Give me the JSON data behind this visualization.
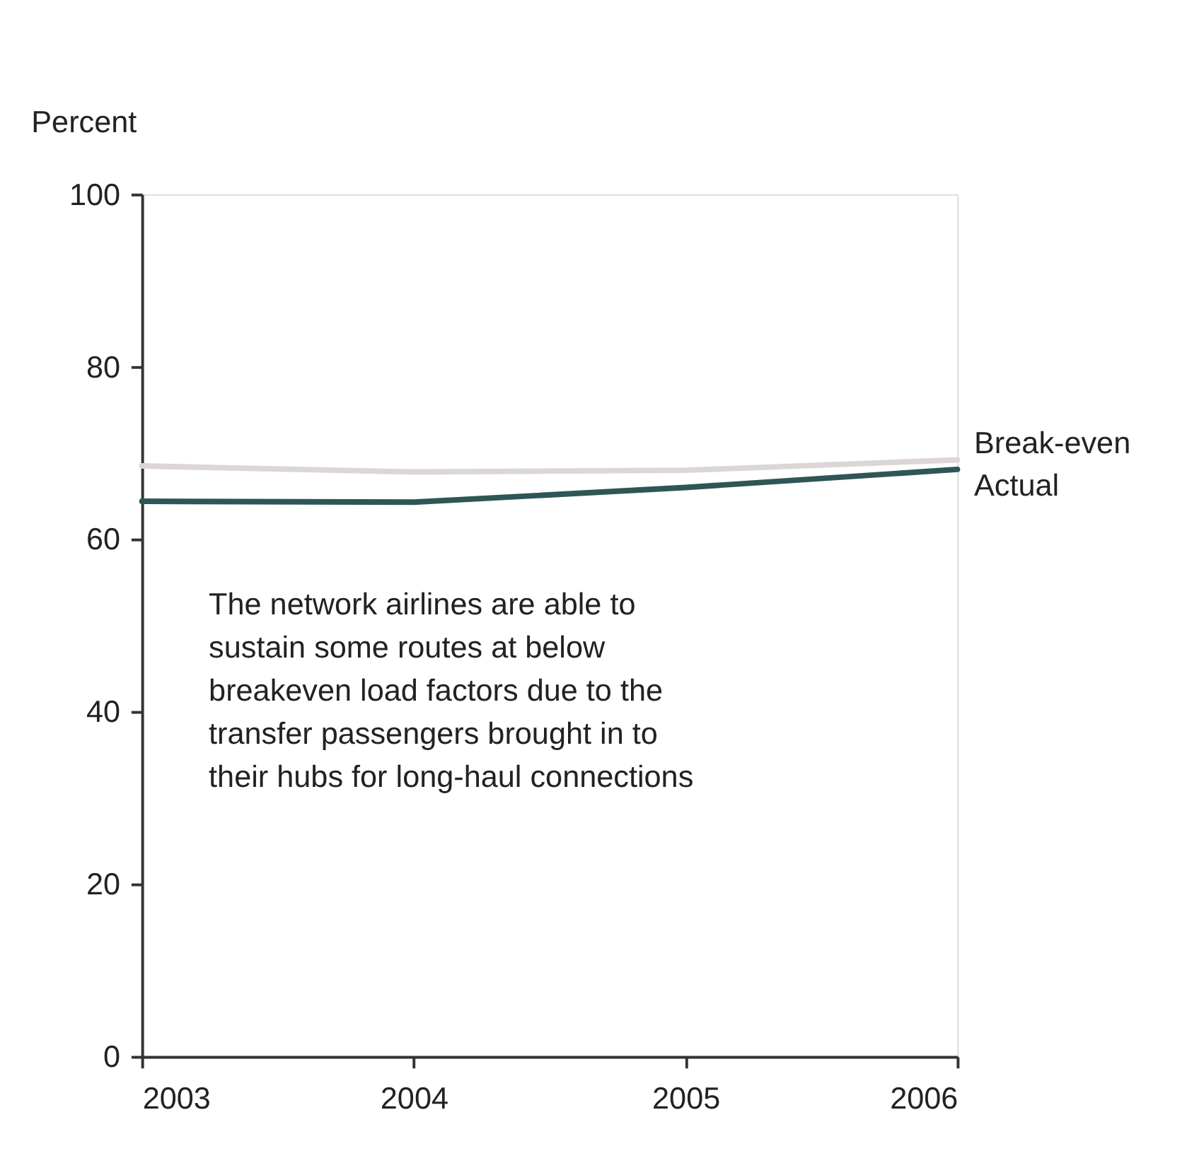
{
  "chart_data": {
    "type": "line",
    "ylabel": "Percent",
    "x": [
      2003,
      2004,
      2005,
      2006
    ],
    "series": [
      {
        "name": "Break-even",
        "color": "#dcd6d6",
        "values": [
          68.5,
          67.8,
          68.0,
          69.2
        ]
      },
      {
        "name": "Actual",
        "color": "#2f5656",
        "values": [
          64.4,
          64.3,
          66.0,
          68.1
        ]
      }
    ],
    "xlim": [
      2003,
      2006
    ],
    "xticks": [
      2003,
      2004,
      2005,
      2006
    ],
    "ylim": [
      0,
      100
    ],
    "yticks": [
      0,
      20,
      40,
      60,
      80,
      100
    ],
    "grid": false,
    "legend": false,
    "marker": "none",
    "line_style": "solid",
    "annotations": [
      "The network airlines are able to\nsustain some routes at below\nbreakeven load factors due to the\ntransfer passengers brought in to\ntheir hubs for long-haul connections"
    ]
  }
}
